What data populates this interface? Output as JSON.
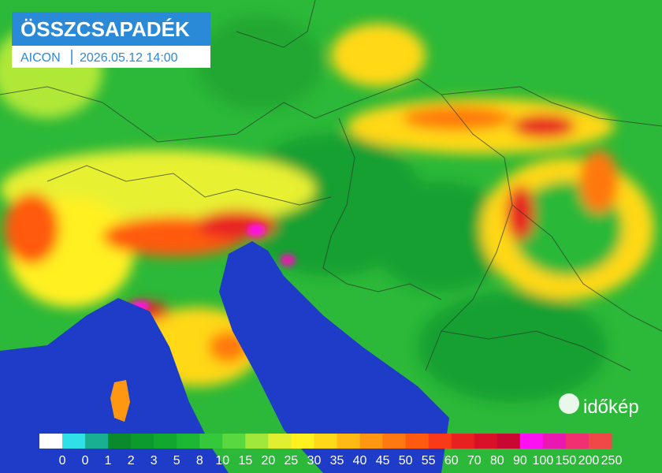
{
  "header": {
    "title": "ÖSSZCSAPADÉK",
    "model": "AICON",
    "time": "2026.05.12 14:00"
  },
  "logo": "időkép",
  "legend": [
    {
      "label": "0",
      "color": "#ffffff"
    },
    {
      "label": "0",
      "color": "#30e0e8"
    },
    {
      "label": "1",
      "color": "#18b090"
    },
    {
      "label": "2",
      "color": "#0a8a2a"
    },
    {
      "label": "3",
      "color": "#0c9a2c"
    },
    {
      "label": "5",
      "color": "#12a830"
    },
    {
      "label": "8",
      "color": "#1cb834"
    },
    {
      "label": "10",
      "color": "#34c83a"
    },
    {
      "label": "15",
      "color": "#5ad840"
    },
    {
      "label": "20",
      "color": "#a0e83c"
    },
    {
      "label": "25",
      "color": "#e0f030"
    },
    {
      "label": "30",
      "color": "#fff020"
    },
    {
      "label": "35",
      "color": "#ffd818"
    },
    {
      "label": "40",
      "color": "#ffb814"
    },
    {
      "label": "45",
      "color": "#ff9810"
    },
    {
      "label": "50",
      "color": "#ff7810"
    },
    {
      "label": "55",
      "color": "#ff5a10"
    },
    {
      "label": "60",
      "color": "#f83a18"
    },
    {
      "label": "70",
      "color": "#e82020"
    },
    {
      "label": "80",
      "color": "#d81028"
    },
    {
      "label": "90",
      "color": "#c80830"
    },
    {
      "label": "100",
      "color": "#ff10f0"
    },
    {
      "label": "150",
      "color": "#e818b0"
    },
    {
      "label": "200",
      "color": "#f03070"
    },
    {
      "label": "250",
      "color": "#f04848"
    }
  ]
}
